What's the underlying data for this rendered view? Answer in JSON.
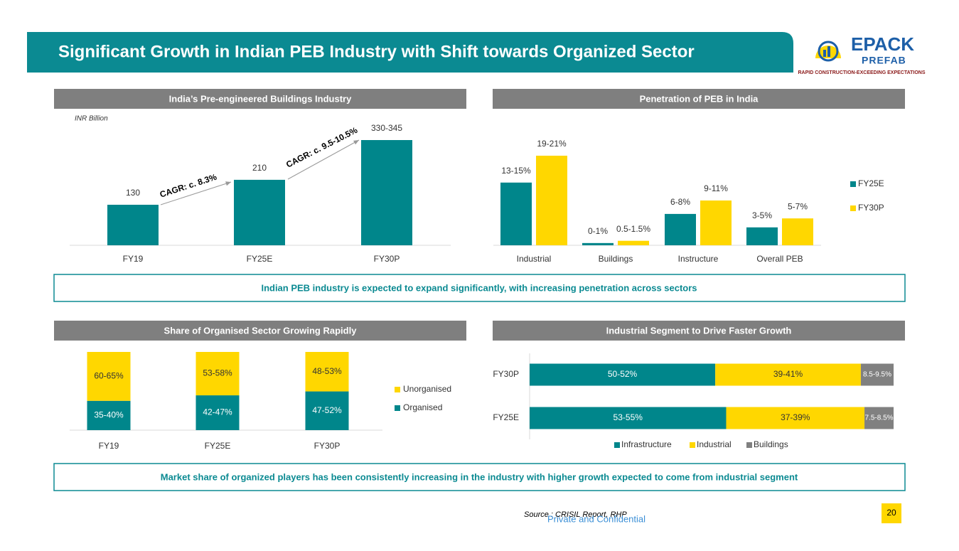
{
  "header": {
    "title": "Significant Growth in Indian PEB Industry with Shift towards Organized Sector"
  },
  "logo": {
    "name": "EPACK",
    "sub": "PREFAB",
    "tagline": "RAPID CONSTRUCTION-EXCEEDING EXPECTATIONS"
  },
  "chart_data": [
    {
      "type": "bar",
      "title": "India’s Pre-engineered Buildings Industry",
      "unit_label": "INR Billion",
      "categories": [
        "FY19",
        "FY25E",
        "FY30P"
      ],
      "values": [
        130,
        210,
        337.5
      ],
      "value_labels": [
        "130",
        "210",
        "330-345"
      ],
      "color": "#00868b",
      "annotations": [
        "CAGR: c. 8.3%",
        "CAGR: c. 9.5-10.5%"
      ]
    },
    {
      "type": "grouped_bar",
      "title": "Penetration of PEB in India",
      "categories": [
        "Industrial",
        "Buildings",
        "Instructure",
        "Overall PEB"
      ],
      "series": [
        {
          "name": "FY25E",
          "color": "#00868b",
          "values": [
            14,
            0.5,
            7,
            4
          ],
          "value_labels": [
            "13-15%",
            "0-1%",
            "6-8%",
            "3-5%"
          ]
        },
        {
          "name": "FY30P",
          "color": "#ffd700",
          "values": [
            20,
            1,
            10,
            6
          ],
          "value_labels": [
            "19-21%",
            "0.5-1.5%",
            "9-11%",
            "5-7%"
          ]
        }
      ],
      "legend": "right"
    },
    {
      "type": "stacked_bar",
      "title": "Share of Organised Sector Growing Rapidly",
      "categories": [
        "FY19",
        "FY25E",
        "FY30P"
      ],
      "series": [
        {
          "name": "Organised",
          "color": "#00868b",
          "values": [
            37.5,
            44.5,
            49.5
          ],
          "value_labels": [
            "35-40%",
            "42-47%",
            "47-52%"
          ]
        },
        {
          "name": "Unorganised",
          "color": "#ffd700",
          "values": [
            62.5,
            55.5,
            50.5
          ],
          "value_labels": [
            "60-65%",
            "53-58%",
            "48-53%"
          ]
        }
      ],
      "legend": "right"
    },
    {
      "type": "stacked_barh",
      "title": "Industrial Segment to Drive Faster Growth",
      "categories": [
        "FY25E",
        "FY30P"
      ],
      "series": [
        {
          "name": "Infrastructure",
          "color": "#00868b",
          "values": [
            54,
            51
          ],
          "value_labels": [
            "53-55%",
            "50-52%"
          ]
        },
        {
          "name": "Industrial",
          "color": "#ffd700",
          "values": [
            38,
            40
          ],
          "value_labels": [
            "37-39%",
            "39-41%"
          ]
        },
        {
          "name": "Buildings",
          "color": "#808080",
          "values": [
            8,
            9
          ],
          "value_labels": [
            "7.5-8.5%",
            "8.5-9.5%"
          ]
        }
      ],
      "legend": "bottom"
    }
  ],
  "banners": [
    "Indian PEB industry is expected to expand significantly, with increasing penetration across sectors",
    "Market share of organized players has been consistently increasing in the industry with higher growth expected to come from industrial segment"
  ],
  "footer": {
    "source": "Source : CRISIL Report, RHP",
    "confidential": "Private and Confidential",
    "page_number": "20"
  }
}
